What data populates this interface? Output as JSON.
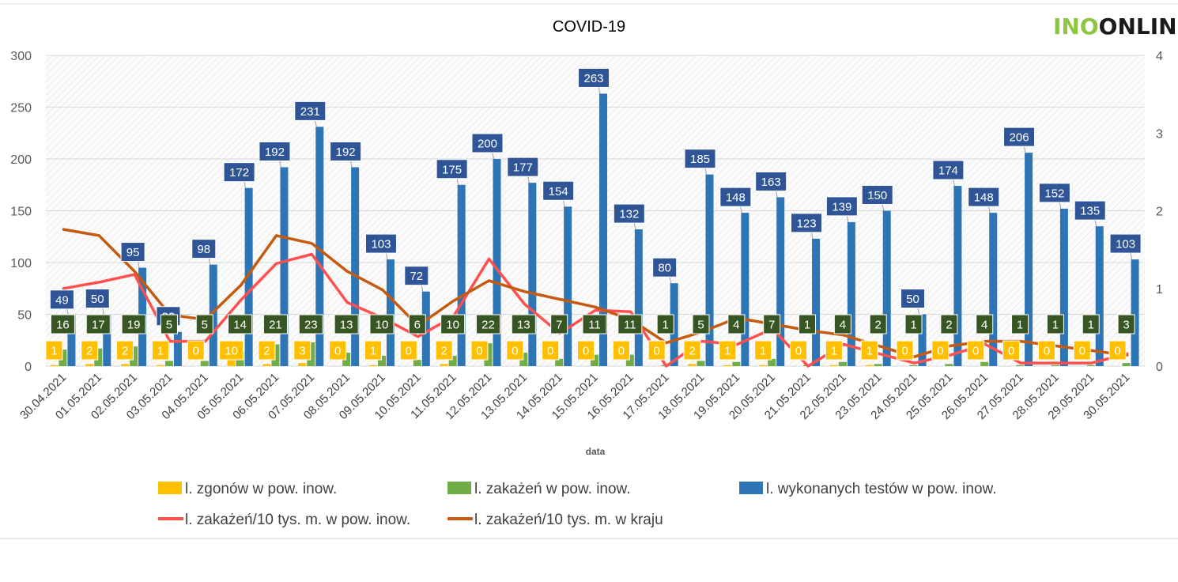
{
  "logo": {
    "part1": "INO",
    "part2": "ONLIN"
  },
  "chart_data": {
    "type": "bar",
    "title": "COVID-19",
    "xlabel": "data",
    "ylabel": "",
    "ylim": [
      0,
      300
    ],
    "y2lim": [
      0,
      4
    ],
    "y_ticks": [
      "0",
      "50",
      "100",
      "150",
      "200",
      "250",
      "300"
    ],
    "y2_ticks": [
      "0",
      "1",
      "2",
      "3",
      "4"
    ],
    "grid": true,
    "legend_position": "bottom",
    "categories": [
      "30.04.2021",
      "01.05.2021",
      "02.05.2021",
      "03.05.2021",
      "04.05.2021",
      "05.05.2021",
      "06.05.2021",
      "07.05.2021",
      "08.05.2021",
      "09.05.2021",
      "10.05.2021",
      "11.05.2021",
      "12.05.2021",
      "13.05.2021",
      "14.05.2021",
      "15.05.2021",
      "16.05.2021",
      "17.05.2021",
      "18.05.2021",
      "19.05.2021",
      "20.05.2021",
      "21.05.2021",
      "22.05.2021",
      "23.05.2021",
      "24.05.2021",
      "25.05.2021",
      "26.05.2021",
      "27.05.2021",
      "28.05.2021",
      "29.05.2021",
      "30.05.2021"
    ],
    "series": [
      {
        "name": "l. zgonów w pow. inow.",
        "type": "bar",
        "axis": "left",
        "color": "#ffc000",
        "values": [
          1,
          2,
          2,
          1,
          0,
          10,
          2,
          3,
          0,
          1,
          0,
          2,
          0,
          0,
          0,
          0,
          0,
          0,
          2,
          1,
          1,
          0,
          1,
          1,
          0,
          0,
          0,
          0,
          0,
          0,
          0
        ]
      },
      {
        "name": "l. zakażeń w pow. inow.",
        "type": "bar",
        "axis": "left",
        "color": "#70ad47",
        "values": [
          16,
          17,
          19,
          5,
          5,
          14,
          21,
          23,
          13,
          10,
          6,
          10,
          22,
          13,
          7,
          11,
          11,
          1,
          5,
          4,
          7,
          1,
          4,
          2,
          1,
          2,
          4,
          1,
          1,
          1,
          3
        ]
      },
      {
        "name": "l. wykonanych testów w pow. inow.",
        "type": "bar",
        "axis": "left",
        "color": "#2e75b6",
        "values": [
          49,
          50,
          95,
          33,
          98,
          172,
          192,
          231,
          192,
          103,
          72,
          175,
          200,
          177,
          154,
          263,
          132,
          80,
          185,
          148,
          163,
          123,
          139,
          150,
          50,
          174,
          148,
          206,
          152,
          135,
          103
        ]
      },
      {
        "name": "l. zakażeń/10 tys. m. w pow. inow.",
        "type": "line",
        "axis": "right",
        "color": "#ff5050",
        "values": [
          1.0,
          1.08,
          1.18,
          0.32,
          0.32,
          0.85,
          1.32,
          1.44,
          0.82,
          0.62,
          0.38,
          0.64,
          1.38,
          0.8,
          0.42,
          0.72,
          0.7,
          0.0,
          0.32,
          0.28,
          0.48,
          0.0,
          0.28,
          0.16,
          0.04,
          0.14,
          0.28,
          0.04,
          0.04,
          0.04,
          0.16
        ]
      },
      {
        "name": "l. zakażeń/10 tys. m. w kraju",
        "type": "line",
        "axis": "right",
        "color": "#c55a11",
        "values": [
          1.76,
          1.68,
          1.22,
          0.66,
          0.6,
          1.04,
          1.68,
          1.58,
          1.22,
          0.98,
          0.52,
          0.84,
          1.1,
          0.96,
          0.86,
          0.76,
          0.6,
          0.3,
          0.44,
          0.62,
          0.54,
          0.46,
          0.4,
          0.26,
          0.12,
          0.26,
          0.32,
          0.32,
          0.26,
          0.2,
          0.14
        ]
      }
    ]
  }
}
